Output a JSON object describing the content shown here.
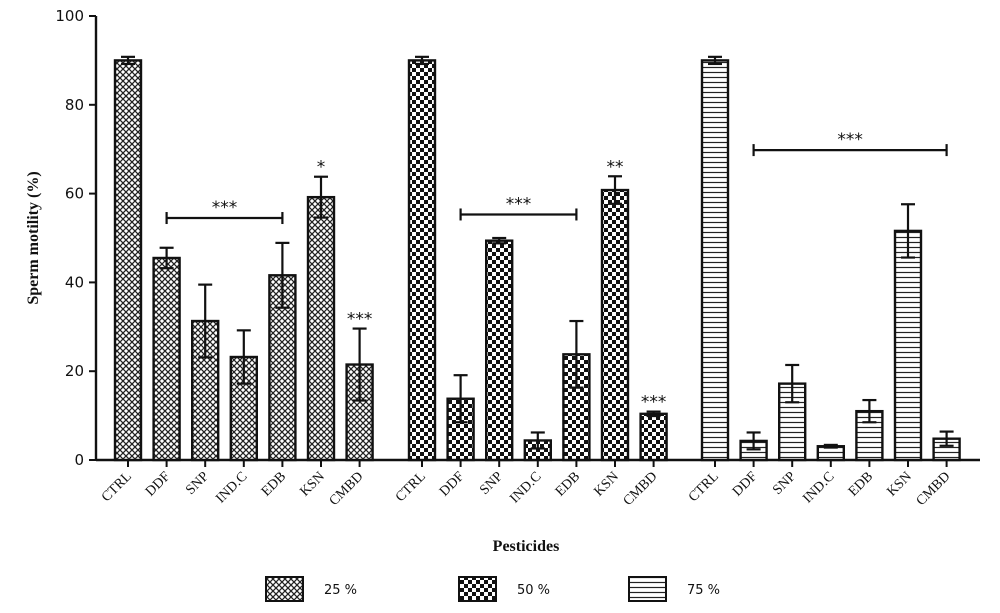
{
  "chart_data": {
    "type": "bar",
    "xlabel": "Pesticides",
    "ylabel": "Sperm motility (%)",
    "ylim": [
      0,
      100
    ],
    "yticks": [
      0,
      20,
      40,
      60,
      80,
      100
    ],
    "grid": false,
    "legend_position": "bottom",
    "groups": [
      {
        "name": "25 %",
        "pattern": "crosshatch",
        "categories": [
          "CTRL",
          "DDF",
          "SNP",
          "IND.C",
          "EDB",
          "KSN",
          "CMBD"
        ],
        "values": [
          90,
          45.5,
          31.3,
          23.2,
          41.6,
          59.2,
          21.5
        ],
        "errors": [
          0.8,
          2.3,
          8.2,
          6.0,
          7.3,
          4.6,
          8.1
        ],
        "stars": [
          "",
          "",
          "",
          "",
          "",
          "*",
          "***"
        ],
        "bracket": {
          "from": "DDF",
          "to": "EDB",
          "y": 54.5,
          "label": "***"
        }
      },
      {
        "name": "50 %",
        "pattern": "checker",
        "categories": [
          "CTRL",
          "DDF",
          "SNP",
          "IND.C",
          "EDB",
          "KSN",
          "CMBD"
        ],
        "values": [
          90,
          13.8,
          49.4,
          4.4,
          23.8,
          60.8,
          10.4
        ],
        "errors": [
          0.8,
          5.3,
          0.6,
          1.8,
          7.5,
          3.1,
          0.5
        ],
        "stars": [
          "",
          "",
          "",
          "",
          "",
          "**",
          "***"
        ],
        "bracket": {
          "from": "DDF",
          "to": "EDB",
          "y": 55.3,
          "label": "***"
        }
      },
      {
        "name": "75 %",
        "pattern": "horizontal-lines",
        "categories": [
          "CTRL",
          "DDF",
          "SNP",
          "IND.C",
          "EDB",
          "KSN",
          "CMBD"
        ],
        "values": [
          90,
          4.3,
          17.2,
          3.1,
          11.0,
          51.6,
          4.8
        ],
        "errors": [
          0.8,
          1.9,
          4.2,
          0.3,
          2.5,
          6.0,
          1.6
        ],
        "stars": [
          "",
          "",
          "",
          "",
          "",
          "",
          ""
        ],
        "bracket": {
          "from": "DDF",
          "to": "CMBD",
          "y": 69.8,
          "label": "***"
        }
      }
    ]
  }
}
